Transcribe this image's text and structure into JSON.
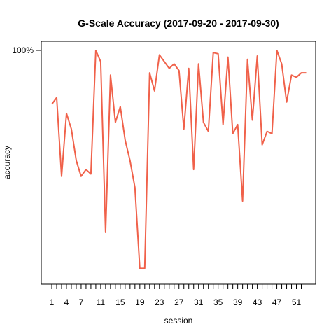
{
  "chart_data": {
    "type": "line",
    "title": "G-Scale Accuracy (2017-09-20 - 2017-09-30)",
    "xlabel": "session",
    "ylabel": "accuracy",
    "xlim": [
      0,
      54
    ],
    "ylim": [
      0,
      1
    ],
    "x_ticks": [
      1,
      2,
      3,
      4,
      5,
      6,
      7,
      8,
      9,
      10,
      11,
      12,
      13,
      14,
      15,
      16,
      17,
      18,
      19,
      20,
      21,
      22,
      23,
      24,
      25,
      26,
      27,
      28,
      29,
      30,
      31,
      32,
      33,
      34,
      35,
      36,
      37,
      38,
      39,
      40,
      41,
      42,
      43,
      44,
      45,
      46,
      47,
      48,
      49,
      50,
      51,
      52
    ],
    "x_tick_labels": [
      "1",
      "4",
      "7",
      "11",
      "15",
      "19",
      "23",
      "27",
      "31",
      "35",
      "39",
      "43",
      "47",
      "51"
    ],
    "x_tick_label_positions": [
      1,
      4,
      7,
      11,
      15,
      19,
      23,
      27,
      31,
      35,
      39,
      43,
      47,
      51
    ],
    "y_ticks": [
      1.0
    ],
    "y_tick_labels": [
      "100%"
    ],
    "line_color": "#f0614a",
    "series": [
      {
        "x": [
          1,
          2,
          3,
          4,
          5,
          6,
          7,
          8,
          9,
          10,
          11,
          12,
          13,
          14,
          15,
          16,
          17,
          18,
          19,
          20,
          21,
          22,
          23,
          24,
          25,
          26,
          27,
          28,
          29,
          30,
          31,
          32,
          33,
          34,
          35,
          36,
          37,
          38,
          39,
          40,
          41,
          42,
          43,
          44,
          45,
          46,
          47,
          48,
          49,
          50,
          51,
          52,
          53
        ],
        "values": [
          0.76,
          0.79,
          0.44,
          0.72,
          0.65,
          0.51,
          0.44,
          0.47,
          0.45,
          1.0,
          0.95,
          0.19,
          0.89,
          0.68,
          0.75,
          0.6,
          0.51,
          0.39,
          0.03,
          0.03,
          0.9,
          0.82,
          0.98,
          0.95,
          0.92,
          0.94,
          0.91,
          0.65,
          0.92,
          0.47,
          0.94,
          0.68,
          0.64,
          0.99,
          0.985,
          0.67,
          0.97,
          0.63,
          0.67,
          0.33,
          0.96,
          0.69,
          0.975,
          0.58,
          0.64,
          0.63,
          1.0,
          0.94,
          0.77,
          0.89,
          0.88,
          0.9,
          0.9
        ]
      }
    ]
  }
}
